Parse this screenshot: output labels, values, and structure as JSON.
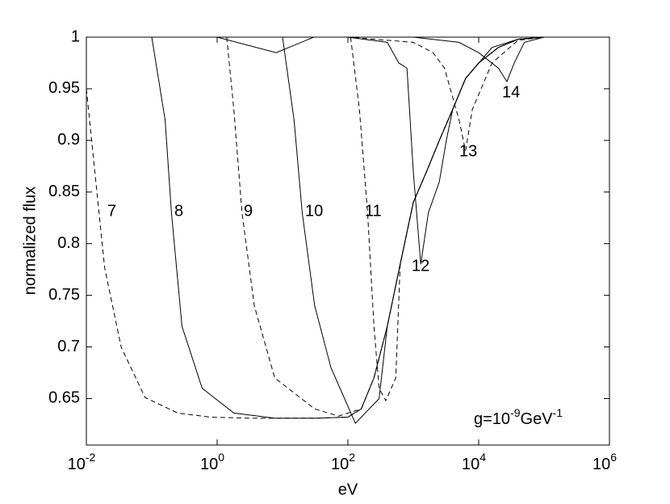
{
  "chart_data": {
    "type": "line",
    "x_label": "eV",
    "y_label": "normalized flux",
    "log_x": true,
    "color": "#000000",
    "xlim": [
      0.01,
      1000000
    ],
    "ylim": [
      0.605,
      1
    ],
    "xticks": [
      {
        "value": 0.01,
        "label": "10",
        "exponent": "-2"
      },
      {
        "value": 1,
        "label": "10",
        "exponent": "0"
      },
      {
        "value": 100,
        "label": "10",
        "exponent": "2"
      },
      {
        "value": 10000,
        "label": "10",
        "exponent": "4"
      },
      {
        "value": 1000000,
        "label": "10",
        "exponent": "6"
      }
    ],
    "yticks": [
      0.65,
      0.7,
      0.75,
      0.8,
      0.85,
      0.9,
      0.95,
      1
    ],
    "annotation": [
      "g=10",
      "-9",
      "GeV",
      "-1"
    ],
    "series": [
      {
        "name": "7",
        "dashed": true,
        "x": [
          0.01,
          0.019,
          0.034,
          0.079,
          0.25,
          0.79,
          3.2,
          10,
          32,
          100,
          160,
          250,
          400,
          630,
          1000,
          1600,
          2500,
          4000,
          6300,
          10000,
          20000,
          40000,
          100000
        ],
        "values": [
          0.95,
          0.777,
          0.7,
          0.651,
          0.636,
          0.632,
          0.631,
          0.631,
          0.631,
          0.632,
          0.64,
          0.67,
          0.72,
          0.78,
          0.84,
          0.87,
          0.9,
          0.93,
          0.96,
          0.975,
          0.99,
          0.998,
          1
        ]
      },
      {
        "name": "8",
        "dashed": false,
        "x": [
          0.1,
          0.16,
          0.2,
          0.29,
          0.59,
          1.8,
          7.6,
          32,
          100,
          160,
          250,
          400,
          630,
          1000,
          1600,
          2500,
          4000,
          6300,
          10000,
          20000,
          40000,
          100000
        ],
        "values": [
          1,
          0.92,
          0.83,
          0.72,
          0.66,
          0.636,
          0.631,
          0.631,
          0.632,
          0.64,
          0.67,
          0.72,
          0.78,
          0.84,
          0.87,
          0.9,
          0.93,
          0.96,
          0.975,
          0.99,
          0.998,
          1
        ]
      },
      {
        "name": "9",
        "dashed": true,
        "x": [
          1.4,
          1.8,
          2.4,
          3.7,
          7.6,
          31,
          72,
          160,
          250,
          400,
          630,
          1000,
          1600,
          2500,
          4000,
          6300,
          10000,
          20000,
          40000,
          100000
        ],
        "values": [
          1,
          0.93,
          0.83,
          0.74,
          0.67,
          0.64,
          0.633,
          0.64,
          0.67,
          0.72,
          0.78,
          0.84,
          0.87,
          0.9,
          0.93,
          0.96,
          0.975,
          0.99,
          0.998,
          1
        ]
      },
      {
        "name": "10",
        "dashed": false,
        "x": [
          10,
          15,
          20,
          31,
          55,
          130,
          300,
          400,
          630,
          1000,
          1600,
          2500,
          4000,
          6300,
          10000,
          20000,
          40000,
          100000
        ],
        "values": [
          1,
          0.92,
          0.83,
          0.74,
          0.68,
          0.626,
          0.65,
          0.72,
          0.78,
          0.84,
          0.87,
          0.9,
          0.93,
          0.96,
          0.975,
          0.99,
          0.998,
          1
        ]
      },
      {
        "name": "11",
        "dashed": true,
        "x": [
          110,
          150,
          200,
          250,
          300,
          380,
          540,
          630,
          1000,
          1600,
          2500,
          4000,
          6300,
          10000,
          20000,
          40000,
          100000
        ],
        "values": [
          1,
          0.93,
          0.83,
          0.72,
          0.66,
          0.648,
          0.67,
          0.78,
          0.84,
          0.87,
          0.9,
          0.93,
          0.96,
          0.975,
          0.99,
          0.998,
          1
        ]
      },
      {
        "name": "12",
        "dashed": false,
        "x": [
          0.1,
          1,
          8,
          30,
          100,
          400,
          600,
          800,
          1000,
          1300,
          1700,
          2500,
          3200,
          4000,
          6300,
          16000,
          40000,
          100000
        ],
        "values": [
          1,
          1,
          0.985,
          1,
          1,
          0.995,
          0.975,
          0.97,
          0.87,
          0.78,
          0.83,
          0.86,
          0.9,
          0.93,
          0.96,
          0.99,
          0.998,
          1
        ]
      },
      {
        "name": "13",
        "dashed": true,
        "x": [
          1,
          8,
          100,
          1000,
          2000,
          3000,
          5000,
          6300,
          8000,
          16000,
          40000,
          100000
        ],
        "values": [
          1,
          1,
          1,
          0.995,
          0.985,
          0.97,
          0.92,
          0.89,
          0.93,
          0.975,
          0.997,
          1
        ]
      },
      {
        "name": "14",
        "dashed": false,
        "x": [
          10,
          100,
          1000,
          5000,
          10000,
          20000,
          27000,
          35000,
          50000,
          100000
        ],
        "values": [
          1,
          1,
          1,
          0.995,
          0.985,
          0.97,
          0.957,
          0.975,
          0.995,
          1
        ]
      }
    ]
  }
}
